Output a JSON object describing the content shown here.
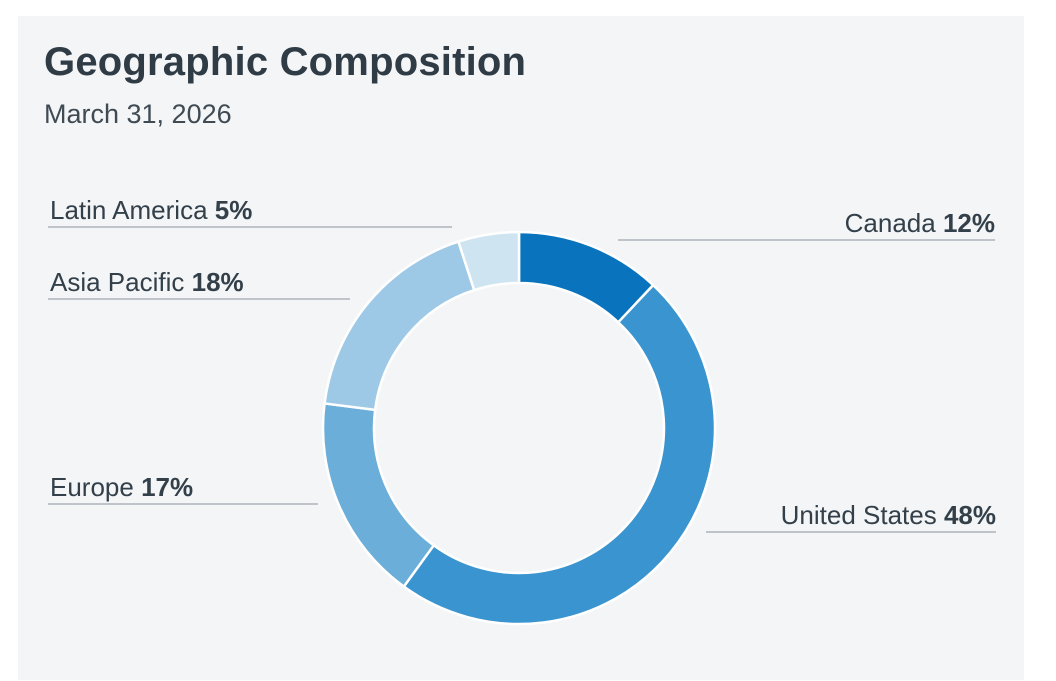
{
  "header": {
    "title": "Geographic Composition",
    "date": "March 31, 2026"
  },
  "chart_data": {
    "type": "pie",
    "title": "Geographic Composition",
    "subtitle": "March 31, 2026",
    "donut": true,
    "start_angle_deg": 0,
    "direction": "clockwise",
    "slices": [
      {
        "label": "Canada",
        "value": 12,
        "display": "12%",
        "color": "#0a73bd"
      },
      {
        "label": "United States",
        "value": 48,
        "display": "48%",
        "color": "#3a94cf"
      },
      {
        "label": "Europe",
        "value": 17,
        "display": "17%",
        "color": "#6aaed9"
      },
      {
        "label": "Asia Pacific",
        "value": 18,
        "display": "18%",
        "color": "#9dc9e7"
      },
      {
        "label": "Latin America",
        "value": 5,
        "display": "5%",
        "color": "#cfe4f1"
      }
    ],
    "legend": "none"
  }
}
